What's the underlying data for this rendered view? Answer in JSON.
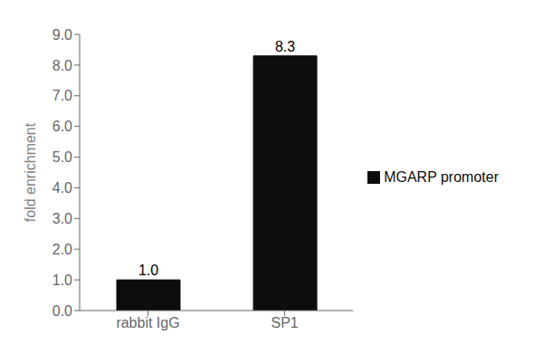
{
  "chart_data": {
    "type": "bar",
    "categories": [
      "rabbit IgG",
      "SP1"
    ],
    "series": [
      {
        "name": "MGARP promoter",
        "color": "#0d0d0d",
        "values": [
          1.0,
          8.3
        ],
        "value_labels": [
          "1.0",
          "8.3"
        ]
      }
    ],
    "ylabel": "fold enrichment",
    "ylim": [
      0,
      9
    ],
    "yticks": [
      {
        "value": 0,
        "label": "0.0"
      },
      {
        "value": 1,
        "label": "1.0"
      },
      {
        "value": 2,
        "label": "2.0"
      },
      {
        "value": 3,
        "label": "3.0"
      },
      {
        "value": 4,
        "label": "4.0"
      },
      {
        "value": 5,
        "label": "5.0"
      },
      {
        "value": 6,
        "label": "6.0"
      },
      {
        "value": 7,
        "label": "7.0"
      },
      {
        "value": 8,
        "label": "8.0"
      },
      {
        "value": 9,
        "label": "9.0"
      }
    ],
    "data_labels": true,
    "legend": "right",
    "grid": false
  }
}
